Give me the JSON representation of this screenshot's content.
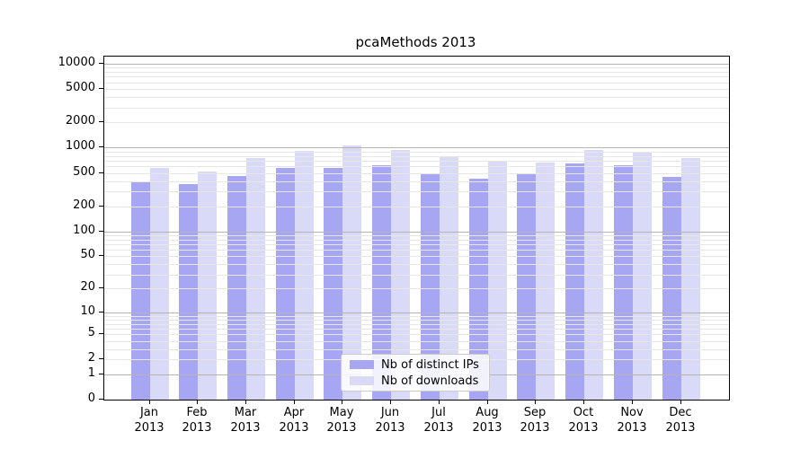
{
  "title": "pcaMethods 2013",
  "legend": {
    "items": [
      {
        "label": "Nb of distinct IPs",
        "color": "#a6a6f2"
      },
      {
        "label": "Nb of downloads",
        "color": "#d9d9f8"
      }
    ]
  },
  "colors": {
    "distinct_ips_bar": "#a6a6f2",
    "downloads_bar": "#d9d9f8",
    "major_gridline": "#b4b4b4",
    "minor_gridline": "#e7e7e7",
    "axis": "#000000",
    "background": "#ffffff"
  },
  "chart_data": {
    "type": "bar",
    "title": "pcaMethods 2013",
    "xlabel": "",
    "ylabel": "",
    "scale": "log10(1+x)",
    "ylim": [
      0,
      12000
    ],
    "grid": "on",
    "legend_position": "bottom-center-inside",
    "categories": [
      "Jan 2013",
      "Feb 2013",
      "Mar 2013",
      "Apr 2013",
      "May 2013",
      "Jun 2013",
      "Jul 2013",
      "Aug 2013",
      "Sep 2013",
      "Oct 2013",
      "Nov 2013",
      "Dec 2013"
    ],
    "series": [
      {
        "name": "Nb of distinct IPs",
        "color": "#a6a6f2",
        "values": [
          400,
          365,
          460,
          570,
          575,
          615,
          495,
          430,
          480,
          655,
          620,
          450
        ]
      },
      {
        "name": "Nb of downloads",
        "color": "#d9d9f8",
        "values": [
          570,
          525,
          750,
          920,
          1050,
          940,
          765,
          675,
          670,
          950,
          865,
          750
        ]
      }
    ],
    "y_ticks": [
      0,
      1,
      2,
      5,
      10,
      20,
      50,
      100,
      200,
      500,
      1000,
      2000,
      5000,
      10000
    ],
    "y_major_gridlines": [
      1,
      10,
      100,
      1000,
      10000
    ]
  }
}
